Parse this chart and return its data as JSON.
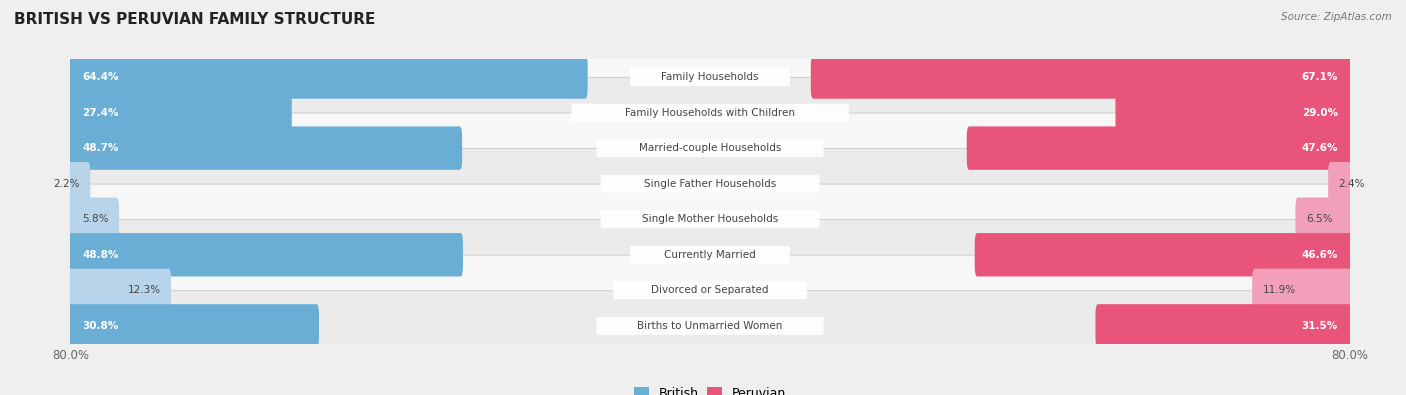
{
  "title": "BRITISH VS PERUVIAN FAMILY STRUCTURE",
  "source": "Source: ZipAtlas.com",
  "categories": [
    "Family Households",
    "Family Households with Children",
    "Married-couple Households",
    "Single Father Households",
    "Single Mother Households",
    "Currently Married",
    "Divorced or Separated",
    "Births to Unmarried Women"
  ],
  "british_values": [
    64.4,
    27.4,
    48.7,
    2.2,
    5.8,
    48.8,
    12.3,
    30.8
  ],
  "peruvian_values": [
    67.1,
    29.0,
    47.6,
    2.4,
    6.5,
    46.6,
    11.9,
    31.5
  ],
  "max_val": 80.0,
  "british_color_high": "#6aaed6",
  "british_color_low": "#b8d4ea",
  "peruvian_color_high": "#e8547a",
  "peruvian_color_low": "#f2a0ba",
  "bg_color": "#efefef",
  "row_bg_light": "#f7f7f7",
  "row_bg_dark": "#ebebeb",
  "label_color_white": "#ffffff",
  "label_color_dark": "#444444",
  "threshold_white": 20.0,
  "legend_british": "British",
  "legend_peruvian": "Peruvian"
}
